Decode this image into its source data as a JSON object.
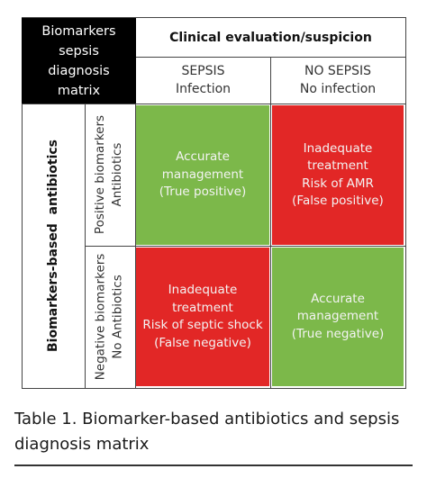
{
  "table": {
    "corner": "Biomarkers\nsepsis\ndiagnosis\nmatrix",
    "column_header": "Clinical evaluation/suspicion",
    "columns": [
      {
        "label": "SEPSIS\nInfection"
      },
      {
        "label": "NO SEPSIS\nNo infection"
      }
    ],
    "row_header": "Biomarkers-based  antibiotics",
    "rows": [
      {
        "label": "Positive biomarkers\nAntibiotics"
      },
      {
        "label": "Negative biomarkers\nNo Antibiotics"
      }
    ],
    "cells": {
      "true_positive": "Accurate\nmanagement\n(True positive)",
      "false_positive": "Inadequate\ntreatment\nRisk of AMR\n(False positive)",
      "false_negative": "Inadequate\ntreatment\nRisk of septic shock\n(False negative)",
      "true_negative": "Accurate\nmanagement\n(True negative)"
    },
    "colors": {
      "green": "#7cb84a",
      "red": "#e22726",
      "corner_bg": "#000000"
    }
  },
  "caption": "Table 1. Biomarker-based antibiotics and sepsis diagnosis matrix"
}
